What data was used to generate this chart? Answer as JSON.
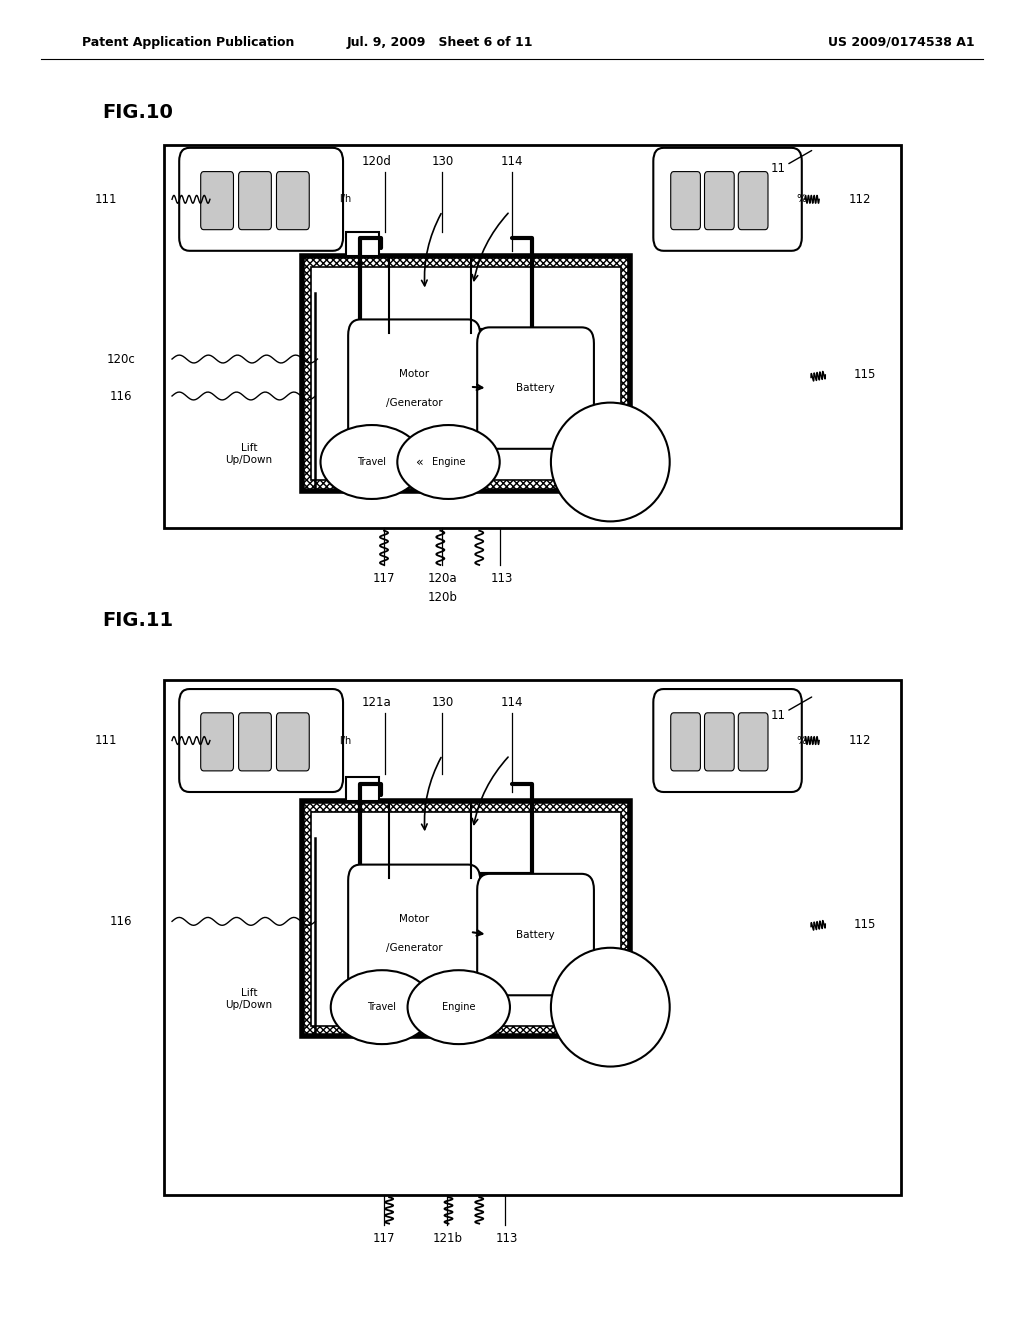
{
  "header_left": "Patent Application Publication",
  "header_mid": "Jul. 9, 2009   Sheet 6 of 11",
  "header_right": "US 2009/0174538 A1",
  "fig10_label": "FIG.10",
  "fig11_label": "FIG.11",
  "bg_color": "#ffffff",
  "fg_color": "#000000"
}
